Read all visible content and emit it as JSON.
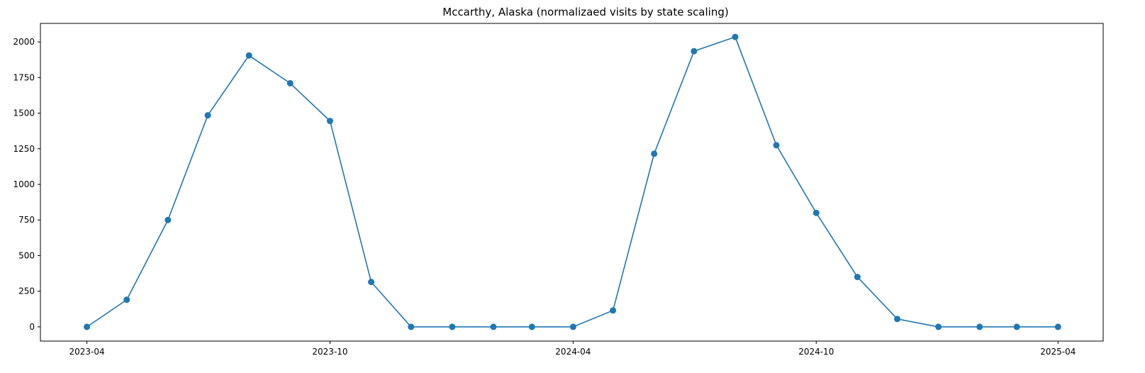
{
  "chart_data": {
    "type": "line",
    "title": "Mccarthy, Alaska (normalizaed visits by state scaling)",
    "xlabel": "",
    "ylabel": "",
    "grid": false,
    "color": "#1f77b4",
    "marker": "circle",
    "xlim": [
      "2023-02-25",
      "2025-05-05"
    ],
    "ylim": [
      -100,
      2130
    ],
    "x_ticks": [
      {
        "date": "2023-04-01",
        "label": "2023-04"
      },
      {
        "date": "2023-10-01",
        "label": "2023-10"
      },
      {
        "date": "2024-04-01",
        "label": "2024-04"
      },
      {
        "date": "2024-10-01",
        "label": "2024-10"
      },
      {
        "date": "2025-04-01",
        "label": "2025-04"
      }
    ],
    "y_ticks": [
      0,
      250,
      500,
      750,
      1000,
      1250,
      1500,
      1750,
      2000
    ],
    "series": [
      {
        "x": [
          "2023-04-01",
          "2023-05-01",
          "2023-06-01",
          "2023-07-01",
          "2023-08-01",
          "2023-09-01",
          "2023-10-01",
          "2023-11-01",
          "2023-12-01",
          "2024-01-01",
          "2024-02-01",
          "2024-03-01",
          "2024-04-01",
          "2024-05-01",
          "2024-06-01",
          "2024-07-01",
          "2024-08-01",
          "2024-09-01",
          "2024-10-01",
          "2024-11-01",
          "2024-12-01",
          "2025-01-01",
          "2025-02-01",
          "2025-03-01",
          "2025-04-01"
        ],
        "y": [
          0,
          190,
          750,
          1485,
          1905,
          1710,
          1445,
          315,
          0,
          0,
          0,
          0,
          0,
          115,
          1215,
          1935,
          2035,
          1275,
          800,
          350,
          55,
          0,
          0,
          0,
          0
        ]
      }
    ]
  }
}
